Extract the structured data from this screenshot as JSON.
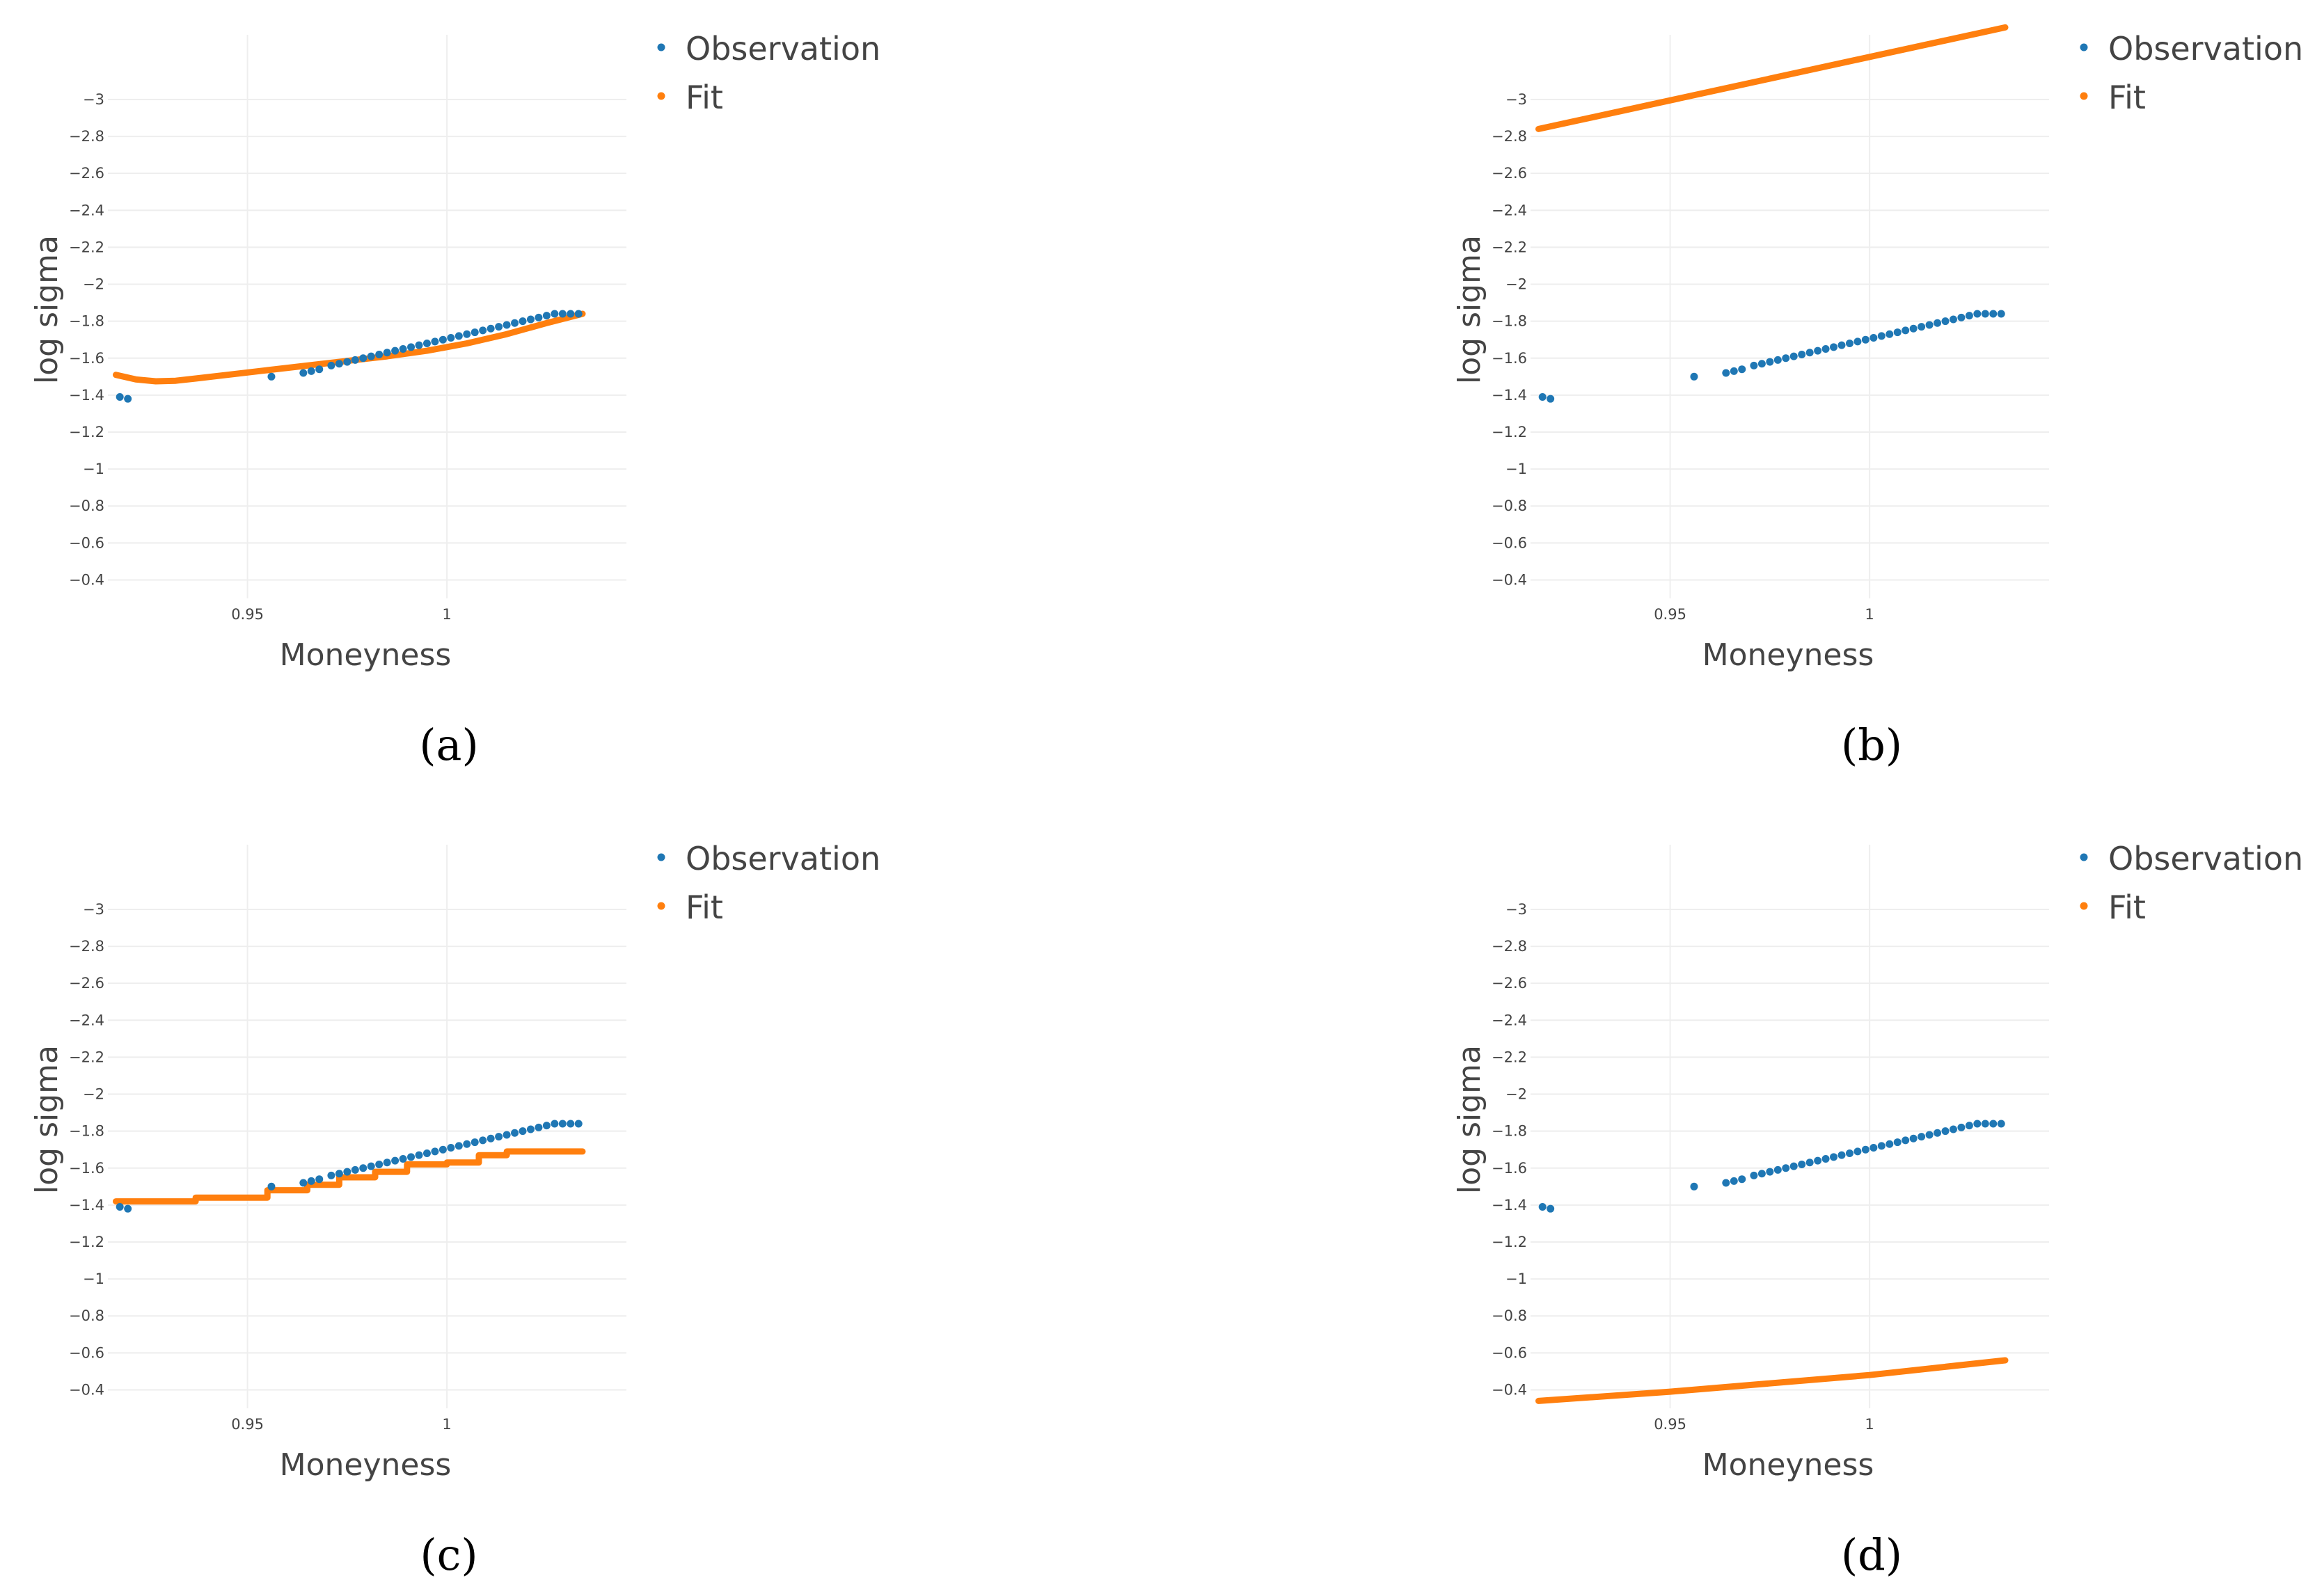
{
  "figure": {
    "colors": {
      "observation": "#1f77b4",
      "fit": "#ff7f0e",
      "grid": "#eeeeee"
    }
  },
  "chart_data": [
    {
      "type": "scatter",
      "panel_label": "(a)",
      "xlabel": "Moneyness",
      "ylabel": "log sigma",
      "xlim": [
        0.915,
        1.045
      ],
      "ylim": [
        -3.35,
        -0.3
      ],
      "xticks": [
        0.95,
        1
      ],
      "xtick_labels": [
        "0.95",
        "1"
      ],
      "yticks": [
        -0.4,
        -0.6,
        -0.8,
        -1,
        -1.2,
        -1.4,
        -1.6,
        -1.8,
        -2,
        -2.2,
        -2.4,
        -2.6,
        -2.8,
        -3
      ],
      "ytick_labels": [
        "−0.4",
        "−0.6",
        "−0.8",
        "−1",
        "−1.2",
        "−1.4",
        "−1.6",
        "−1.8",
        "−2",
        "−2.2",
        "−2.4",
        "−2.6",
        "−2.8",
        "−3"
      ],
      "legend": [
        "Observation",
        "Fit"
      ],
      "series": [
        {
          "name": "Observation",
          "mode": "markers",
          "x": [
            0.918,
            0.92,
            0.956,
            0.964,
            0.966,
            0.968,
            0.971,
            0.973,
            0.975,
            0.977,
            0.979,
            0.981,
            0.983,
            0.985,
            0.987,
            0.989,
            0.991,
            0.993,
            0.995,
            0.997,
            0.999,
            1.001,
            1.003,
            1.005,
            1.007,
            1.009,
            1.011,
            1.013,
            1.015,
            1.017,
            1.019,
            1.021,
            1.023,
            1.025,
            1.027,
            1.029,
            1.031,
            1.033
          ],
          "y": [
            -1.39,
            -1.38,
            -1.5,
            -1.52,
            -1.53,
            -1.54,
            -1.56,
            -1.57,
            -1.58,
            -1.59,
            -1.6,
            -1.61,
            -1.62,
            -1.63,
            -1.64,
            -1.65,
            -1.66,
            -1.67,
            -1.68,
            -1.69,
            -1.7,
            -1.71,
            -1.72,
            -1.73,
            -1.74,
            -1.75,
            -1.76,
            -1.77,
            -1.78,
            -1.79,
            -1.8,
            -1.81,
            -1.82,
            -1.83,
            -1.84,
            -1.84,
            -1.84,
            -1.84
          ]
        },
        {
          "name": "Fit",
          "mode": "lines",
          "x": [
            0.917,
            0.922,
            0.927,
            0.932,
            0.937,
            0.945,
            0.955,
            0.965,
            0.975,
            0.985,
            0.995,
            1.005,
            1.015,
            1.025,
            1.034
          ],
          "y": [
            -1.51,
            -1.485,
            -1.475,
            -1.478,
            -1.49,
            -1.51,
            -1.535,
            -1.56,
            -1.585,
            -1.61,
            -1.64,
            -1.68,
            -1.73,
            -1.79,
            -1.84
          ]
        }
      ]
    },
    {
      "type": "scatter",
      "panel_label": "(b)",
      "xlabel": "Moneyness",
      "ylabel": "log sigma",
      "xlim": [
        0.915,
        1.045
      ],
      "ylim": [
        -3.35,
        -0.3
      ],
      "xticks": [
        0.95,
        1
      ],
      "xtick_labels": [
        "0.95",
        "1"
      ],
      "yticks": [
        -0.4,
        -0.6,
        -0.8,
        -1,
        -1.2,
        -1.4,
        -1.6,
        -1.8,
        -2,
        -2.2,
        -2.4,
        -2.6,
        -2.8,
        -3
      ],
      "ytick_labels": [
        "−0.4",
        "−0.6",
        "−0.8",
        "−1",
        "−1.2",
        "−1.4",
        "−1.6",
        "−1.8",
        "−2",
        "−2.2",
        "−2.4",
        "−2.6",
        "−2.8",
        "−3"
      ],
      "legend": [
        "Observation",
        "Fit"
      ],
      "series": [
        {
          "name": "Observation",
          "mode": "markers",
          "x": [
            0.918,
            0.92,
            0.956,
            0.964,
            0.966,
            0.968,
            0.971,
            0.973,
            0.975,
            0.977,
            0.979,
            0.981,
            0.983,
            0.985,
            0.987,
            0.989,
            0.991,
            0.993,
            0.995,
            0.997,
            0.999,
            1.001,
            1.003,
            1.005,
            1.007,
            1.009,
            1.011,
            1.013,
            1.015,
            1.017,
            1.019,
            1.021,
            1.023,
            1.025,
            1.027,
            1.029,
            1.031,
            1.033
          ],
          "y": [
            -1.39,
            -1.38,
            -1.5,
            -1.52,
            -1.53,
            -1.54,
            -1.56,
            -1.57,
            -1.58,
            -1.59,
            -1.6,
            -1.61,
            -1.62,
            -1.63,
            -1.64,
            -1.65,
            -1.66,
            -1.67,
            -1.68,
            -1.69,
            -1.7,
            -1.71,
            -1.72,
            -1.73,
            -1.74,
            -1.75,
            -1.76,
            -1.77,
            -1.78,
            -1.79,
            -1.8,
            -1.81,
            -1.82,
            -1.83,
            -1.84,
            -1.84,
            -1.84,
            -1.84
          ]
        },
        {
          "name": "Fit",
          "mode": "lines",
          "x": [
            0.917,
            1.034
          ],
          "y": [
            -2.84,
            -3.39
          ]
        }
      ]
    },
    {
      "type": "scatter",
      "panel_label": "(c)",
      "xlabel": "Moneyness",
      "ylabel": "log sigma",
      "xlim": [
        0.915,
        1.045
      ],
      "ylim": [
        -3.35,
        -0.3
      ],
      "xticks": [
        0.95,
        1
      ],
      "xtick_labels": [
        "0.95",
        "1"
      ],
      "yticks": [
        -0.4,
        -0.6,
        -0.8,
        -1,
        -1.2,
        -1.4,
        -1.6,
        -1.8,
        -2,
        -2.2,
        -2.4,
        -2.6,
        -2.8,
        -3
      ],
      "ytick_labels": [
        "−0.4",
        "−0.6",
        "−0.8",
        "−1",
        "−1.2",
        "−1.4",
        "−1.6",
        "−1.8",
        "−2",
        "−2.2",
        "−2.4",
        "−2.6",
        "−2.8",
        "−3"
      ],
      "legend": [
        "Observation",
        "Fit"
      ],
      "series": [
        {
          "name": "Observation",
          "mode": "markers",
          "x": [
            0.918,
            0.92,
            0.956,
            0.964,
            0.966,
            0.968,
            0.971,
            0.973,
            0.975,
            0.977,
            0.979,
            0.981,
            0.983,
            0.985,
            0.987,
            0.989,
            0.991,
            0.993,
            0.995,
            0.997,
            0.999,
            1.001,
            1.003,
            1.005,
            1.007,
            1.009,
            1.011,
            1.013,
            1.015,
            1.017,
            1.019,
            1.021,
            1.023,
            1.025,
            1.027,
            1.029,
            1.031,
            1.033
          ],
          "y": [
            -1.39,
            -1.38,
            -1.5,
            -1.52,
            -1.53,
            -1.54,
            -1.56,
            -1.57,
            -1.58,
            -1.59,
            -1.6,
            -1.61,
            -1.62,
            -1.63,
            -1.64,
            -1.65,
            -1.66,
            -1.67,
            -1.68,
            -1.69,
            -1.7,
            -1.71,
            -1.72,
            -1.73,
            -1.74,
            -1.75,
            -1.76,
            -1.77,
            -1.78,
            -1.79,
            -1.8,
            -1.81,
            -1.82,
            -1.83,
            -1.84,
            -1.84,
            -1.84,
            -1.84
          ]
        },
        {
          "name": "Fit",
          "mode": "lines",
          "x": [
            0.917,
            0.937,
            0.937,
            0.943,
            0.943,
            0.955,
            0.955,
            0.965,
            0.965,
            0.973,
            0.973,
            0.982,
            0.982,
            0.99,
            0.99,
            1.0,
            1.0,
            1.008,
            1.008,
            1.015,
            1.015,
            1.034
          ],
          "y": [
            -1.42,
            -1.42,
            -1.44,
            -1.44,
            -1.44,
            -1.44,
            -1.48,
            -1.48,
            -1.51,
            -1.51,
            -1.55,
            -1.55,
            -1.58,
            -1.58,
            -1.62,
            -1.62,
            -1.63,
            -1.63,
            -1.67,
            -1.67,
            -1.69,
            -1.69
          ]
        }
      ]
    },
    {
      "type": "scatter",
      "panel_label": "(d)",
      "xlabel": "Moneyness",
      "ylabel": "log sigma",
      "xlim": [
        0.915,
        1.045
      ],
      "ylim": [
        -3.35,
        -0.3
      ],
      "xticks": [
        0.95,
        1
      ],
      "xtick_labels": [
        "0.95",
        "1"
      ],
      "yticks": [
        -0.4,
        -0.6,
        -0.8,
        -1,
        -1.2,
        -1.4,
        -1.6,
        -1.8,
        -2,
        -2.2,
        -2.4,
        -2.6,
        -2.8,
        -3
      ],
      "ytick_labels": [
        "−0.4",
        "−0.6",
        "−0.8",
        "−1",
        "−1.2",
        "−1.4",
        "−1.6",
        "−1.8",
        "−2",
        "−2.2",
        "−2.4",
        "−2.6",
        "−2.8",
        "−3"
      ],
      "legend": [
        "Observation",
        "Fit"
      ],
      "series": [
        {
          "name": "Observation",
          "mode": "markers",
          "x": [
            0.918,
            0.92,
            0.956,
            0.964,
            0.966,
            0.968,
            0.971,
            0.973,
            0.975,
            0.977,
            0.979,
            0.981,
            0.983,
            0.985,
            0.987,
            0.989,
            0.991,
            0.993,
            0.995,
            0.997,
            0.999,
            1.001,
            1.003,
            1.005,
            1.007,
            1.009,
            1.011,
            1.013,
            1.015,
            1.017,
            1.019,
            1.021,
            1.023,
            1.025,
            1.027,
            1.029,
            1.031,
            1.033
          ],
          "y": [
            -1.39,
            -1.38,
            -1.5,
            -1.52,
            -1.53,
            -1.54,
            -1.56,
            -1.57,
            -1.58,
            -1.59,
            -1.6,
            -1.61,
            -1.62,
            -1.63,
            -1.64,
            -1.65,
            -1.66,
            -1.67,
            -1.68,
            -1.69,
            -1.7,
            -1.71,
            -1.72,
            -1.73,
            -1.74,
            -1.75,
            -1.76,
            -1.77,
            -1.78,
            -1.79,
            -1.8,
            -1.81,
            -1.82,
            -1.83,
            -1.84,
            -1.84,
            -1.84,
            -1.84
          ]
        },
        {
          "name": "Fit",
          "mode": "lines",
          "x": [
            0.917,
            0.95,
            1.0,
            1.034
          ],
          "y": [
            -0.34,
            -0.39,
            -0.48,
            -0.56
          ]
        }
      ]
    }
  ]
}
